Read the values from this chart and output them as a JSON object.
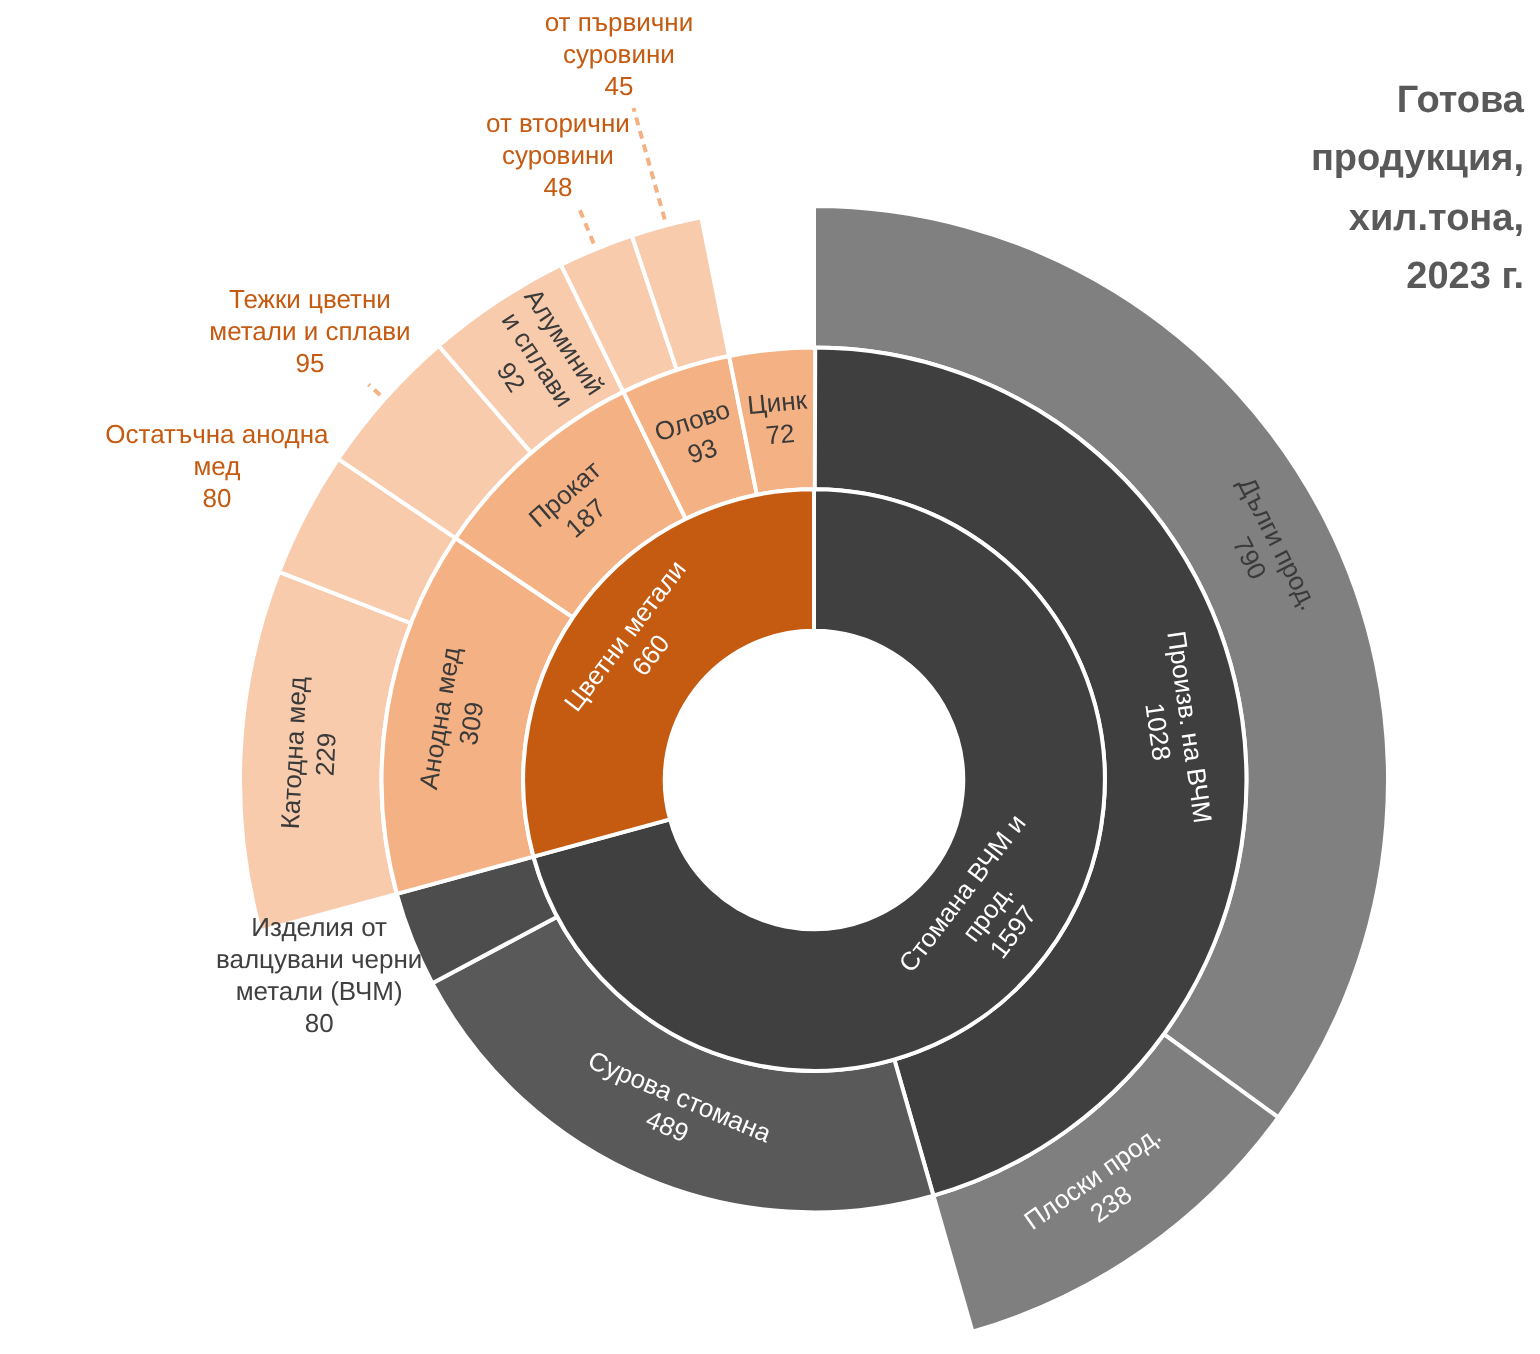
{
  "chart_data": {
    "type": "other",
    "title": "Готова продукция, хил.тона, 2023 г.",
    "categories": [
      "Стомана ВЧМ и прод.",
      "Произв. на ВЧМ",
      "Дълги прод.",
      "Плоски прод.",
      "Сурова стомана",
      "Изделия от валцувани черни метали (ВЧМ)",
      "Цветни метали",
      "Анодна мед",
      "Катодна мед",
      "Остатъчна анодна мед",
      "Прокат",
      "Тежки цветни метали и сплави",
      "Алуминий и сплави",
      "Олово",
      "от вторични суровини",
      "от първични суровини",
      "Цинк"
    ],
    "series": [
      {
        "values": [
          1597,
          null,
          null,
          null,
          null,
          null,
          660,
          null,
          null,
          null,
          null,
          null,
          null,
          null,
          null,
          null,
          null
        ],
        "colors": [
          "#404040",
          null,
          null,
          null,
          null,
          null,
          "#c55a11",
          null,
          null,
          null,
          null,
          null,
          null,
          null,
          null,
          null,
          null
        ]
      },
      {
        "values": [
          null,
          1028,
          null,
          null,
          489,
          80,
          null,
          309,
          null,
          null,
          187,
          null,
          null,
          93,
          null,
          null,
          72
        ],
        "colors": [
          null,
          "#3f3f3f",
          null,
          null,
          "#595959",
          "#4d4d4d",
          null,
          "#f4b183",
          null,
          null,
          "#f4b183",
          null,
          null,
          "#f4b183",
          null,
          null,
          "#f4b183"
        ]
      },
      {
        "values": [
          null,
          null,
          790,
          238,
          null,
          null,
          null,
          null,
          229,
          80,
          null,
          95,
          92,
          null,
          48,
          45,
          null
        ],
        "colors": [
          null,
          null,
          "#808080",
          "#7f7f7f",
          null,
          null,
          null,
          null,
          "#f8cbad",
          "#f8cbad",
          null,
          "#f8cbad",
          "#f8cbad",
          null,
          "#f8cbad",
          "#f8cbad",
          null
        ]
      }
    ],
    "data_labels": true
  }
}
